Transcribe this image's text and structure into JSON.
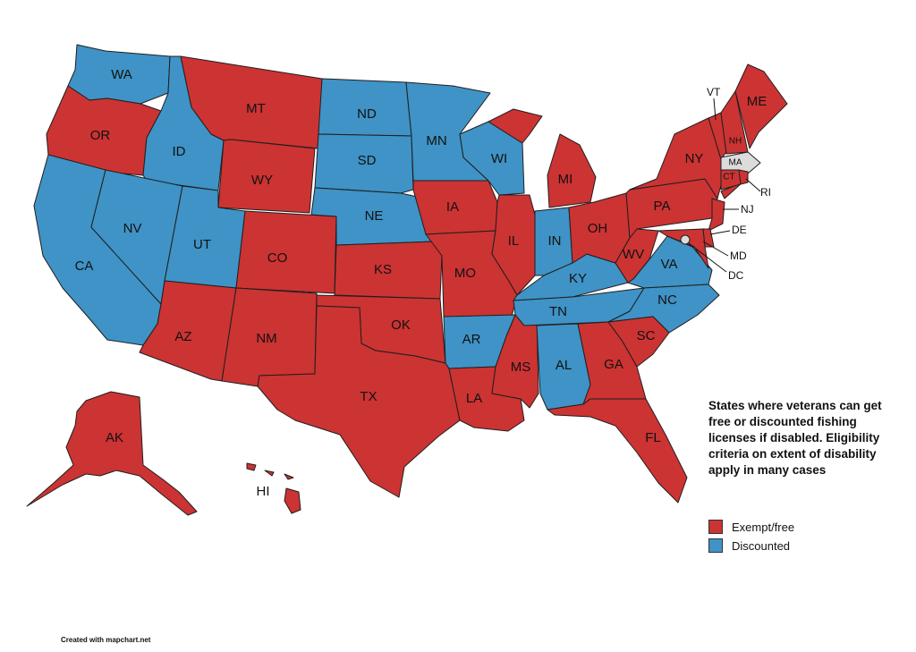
{
  "colors": {
    "exempt": "#cc3333",
    "discounted": "#3f93c6",
    "none": "#dcdcdc",
    "border": "#1f1f1f"
  },
  "legend": {
    "title": "States where veterans can get free or discounted fishing licenses if disabled. Eligibility criteria on extent of disability apply in many cases",
    "items": [
      {
        "label": "Exempt/free",
        "category": "exempt"
      },
      {
        "label": "Discounted",
        "category": "discounted"
      }
    ]
  },
  "credit": "Created with mapchart.net",
  "states": {
    "WA": "discounted",
    "OR": "exempt",
    "CA": "discounted",
    "ID": "discounted",
    "NV": "discounted",
    "MT": "exempt",
    "WY": "exempt",
    "UT": "discounted",
    "CO": "exempt",
    "AZ": "exempt",
    "NM": "exempt",
    "ND": "discounted",
    "SD": "discounted",
    "NE": "discounted",
    "KS": "exempt",
    "OK": "exempt",
    "TX": "exempt",
    "MN": "discounted",
    "IA": "exempt",
    "MO": "exempt",
    "AR": "discounted",
    "LA": "exempt",
    "WI": "discounted",
    "IL": "exempt",
    "MS": "exempt",
    "MI": "exempt",
    "IN": "discounted",
    "KY": "discounted",
    "TN": "discounted",
    "AL": "discounted",
    "OH": "exempt",
    "WV": "exempt",
    "VA": "discounted",
    "NC": "discounted",
    "SC": "exempt",
    "GA": "exempt",
    "FL": "exempt",
    "PA": "exempt",
    "NY": "exempt",
    "VT": "exempt",
    "NH": "exempt",
    "ME": "exempt",
    "MA": "none",
    "RI": "exempt",
    "CT": "exempt",
    "NJ": "exempt",
    "DE": "exempt",
    "MD": "exempt",
    "DC": "none",
    "AK": "exempt",
    "HI": "exempt"
  },
  "labels": {
    "WA": "WA",
    "OR": "OR",
    "CA": "CA",
    "ID": "ID",
    "NV": "NV",
    "MT": "MT",
    "WY": "WY",
    "UT": "UT",
    "CO": "CO",
    "AZ": "AZ",
    "NM": "NM",
    "ND": "ND",
    "SD": "SD",
    "NE": "NE",
    "KS": "KS",
    "OK": "OK",
    "TX": "TX",
    "MN": "MN",
    "IA": "IA",
    "MO": "MO",
    "AR": "AR",
    "LA": "LA",
    "WI": "WI",
    "IL": "IL",
    "MS": "MS",
    "MI": "MI",
    "IN": "IN",
    "KY": "KY",
    "TN": "TN",
    "AL": "AL",
    "OH": "OH",
    "WV": "WV",
    "VA": "VA",
    "NC": "NC",
    "SC": "SC",
    "GA": "GA",
    "FL": "FL",
    "PA": "PA",
    "NY": "NY",
    "VT": "VT",
    "NH": "NH",
    "ME": "ME",
    "MA": "MA",
    "RI": "RI",
    "CT": "CT",
    "NJ": "NJ",
    "DE": "DE",
    "MD": "MD",
    "DC": "DC",
    "AK": "AK",
    "HI": "HI"
  }
}
